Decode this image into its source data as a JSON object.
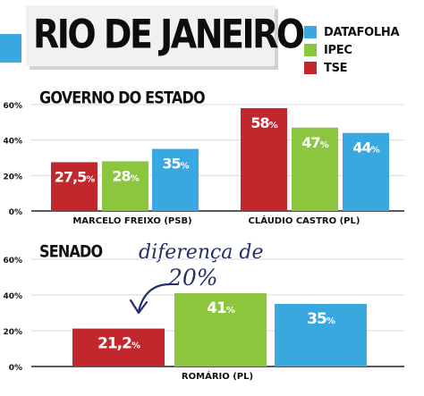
{
  "title": "RIO DE JANEIRO",
  "colors": {
    "datafolha": "#3aa8e0",
    "ipec": "#8cc63f",
    "tse": "#c1272d",
    "annotation": "#24306b"
  },
  "legend": [
    {
      "label": "DATAFOLHA",
      "color": "#3aa8e0"
    },
    {
      "label": "IPEC",
      "color": "#8cc63f"
    },
    {
      "label": "TSE",
      "color": "#c1272d"
    }
  ],
  "annotation": {
    "line1": "diferença de",
    "line2": "20%",
    "icon": "curved-arrow-icon"
  },
  "chart_data": [
    {
      "type": "bar",
      "title": "GOVERNO DO ESTADO",
      "categories": [
        "MARCELO FREIXO (PSB)",
        "CLÁUDIO CASTRO (PL)"
      ],
      "series_order": [
        "TSE",
        "IPEC",
        "DATAFOLHA"
      ],
      "series": [
        {
          "name": "TSE",
          "values": [
            27.5,
            58
          ],
          "labels": [
            "27,5%",
            "58%"
          ]
        },
        {
          "name": "IPEC",
          "values": [
            28,
            47
          ],
          "labels": [
            "28%",
            "47%"
          ]
        },
        {
          "name": "DATAFOLHA",
          "values": [
            35,
            44
          ],
          "labels": [
            "35%",
            "44%"
          ]
        }
      ],
      "ylim": [
        0,
        60
      ],
      "yticks": [
        "0%",
        "20%",
        "40%",
        "60%"
      ]
    },
    {
      "type": "bar",
      "title": "SENADO",
      "categories": [
        "ROMÁRIO (PL)"
      ],
      "series": [
        {
          "name": "TSE",
          "values": [
            21.2
          ],
          "labels": [
            "21,2%"
          ]
        },
        {
          "name": "IPEC",
          "values": [
            41
          ],
          "labels": [
            "41%"
          ]
        },
        {
          "name": "DATAFOLHA",
          "values": [
            35
          ],
          "labels": [
            "35%"
          ]
        }
      ],
      "ylim": [
        0,
        60
      ],
      "yticks": [
        "0%",
        "20%",
        "40%",
        "60%"
      ]
    }
  ]
}
